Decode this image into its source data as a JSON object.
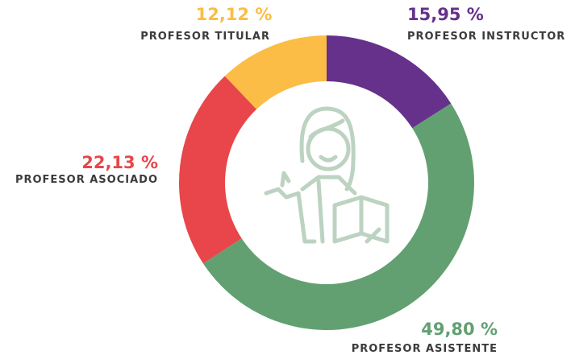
{
  "chart_data": {
    "type": "donut",
    "categories": [
      "PROFESOR INSTRUCTOR",
      "PROFESOR ASISTENTE",
      "PROFESOR ASOCIADO",
      "PROFESOR TITULAR"
    ],
    "values": [
      15.95,
      49.8,
      22.13,
      12.12
    ],
    "value_labels": [
      "15,95 %",
      "49,80 %",
      "22,13 %",
      "12,12 %"
    ],
    "colors": [
      "#65318b",
      "#62a072",
      "#e8464a",
      "#fbbd45"
    ]
  }
}
